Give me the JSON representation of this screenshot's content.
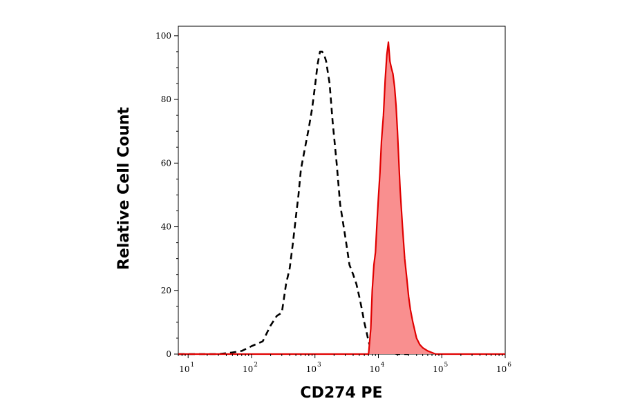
{
  "chart_data": {
    "type": "area",
    "title": "",
    "xlabel": "CD274 PE",
    "ylabel": "Relative Cell Count",
    "xscale": "log",
    "xlim": [
      7,
      1000000
    ],
    "ylim": [
      0,
      103
    ],
    "grid": false,
    "x_ticks": [
      {
        "base": "10",
        "exp": "1",
        "value": 10
      },
      {
        "base": "10",
        "exp": "2",
        "value": 100
      },
      {
        "base": "10",
        "exp": "3",
        "value": 1000
      },
      {
        "base": "10",
        "exp": "4",
        "value": 10000
      },
      {
        "base": "10",
        "exp": "5",
        "value": 100000
      },
      {
        "base": "10",
        "exp": "6",
        "value": 1000000
      }
    ],
    "y_ticks": [
      {
        "label": "0",
        "value": 0
      },
      {
        "label": "20",
        "value": 20
      },
      {
        "label": "40",
        "value": 40
      },
      {
        "label": "60",
        "value": 60
      },
      {
        "label": "80",
        "value": 80
      },
      {
        "label": "100",
        "value": 100
      }
    ],
    "series": [
      {
        "style": "dashed",
        "color": "#000000",
        "fill": false,
        "x": [
          7,
          30,
          50,
          70,
          100,
          150,
          200,
          250,
          300,
          350,
          400,
          450,
          500,
          550,
          600,
          700,
          800,
          900,
          1000,
          1100,
          1200,
          1300,
          1400,
          1500,
          1700,
          1900,
          2200,
          2500,
          3000,
          3500,
          4000,
          4500,
          5000,
          5500,
          6000,
          6500,
          7000,
          7500,
          8000,
          9000,
          10000,
          12000,
          15000,
          20000,
          30000
        ],
        "y": [
          0,
          0,
          0.5,
          1,
          2.5,
          4,
          9,
          12,
          13,
          22,
          27,
          35,
          43,
          50,
          58,
          65,
          71,
          77,
          84,
          91,
          95,
          95,
          94,
          92,
          85,
          73,
          60,
          47,
          37,
          28,
          25,
          22,
          18,
          14,
          10,
          7,
          4,
          2,
          1.5,
          2,
          1.5,
          1,
          0.5,
          0,
          0
        ]
      },
      {
        "style": "solid",
        "color": "#e00000",
        "fill": true,
        "fill_color": "#f98f8f",
        "x": [
          7,
          7000,
          7600,
          8000,
          8500,
          9000,
          9500,
          10000,
          10600,
          11200,
          12000,
          12800,
          13600,
          14400,
          15200,
          16000,
          17000,
          18000,
          19000,
          20000,
          22000,
          24000,
          26000,
          28000,
          30000,
          32000,
          35000,
          40000,
          45000,
          50000,
          60000,
          80000,
          1000000
        ],
        "y": [
          0,
          0,
          8,
          20,
          28,
          32,
          41,
          49,
          57,
          67,
          75,
          86,
          94,
          98,
          92,
          90,
          88,
          84,
          78,
          70,
          52,
          40,
          30,
          24,
          18,
          14,
          10,
          5,
          3,
          2,
          1,
          0,
          0
        ]
      }
    ]
  }
}
